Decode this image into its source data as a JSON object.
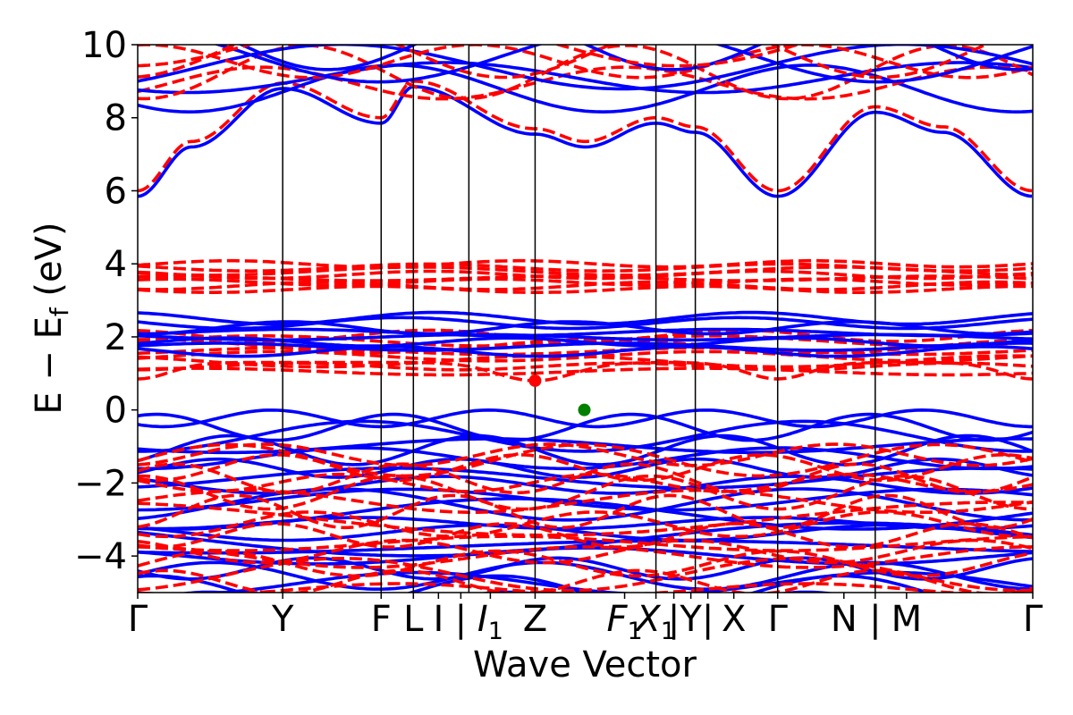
{
  "chart_data": {
    "type": "line",
    "title": "",
    "xlabel": "Wave Vector",
    "ylabel": "E − E",
    "ylabel_sub": "f",
    "ylabel_unit": " (eV)",
    "ylim": [
      -5,
      10
    ],
    "yticks": [
      -4,
      -2,
      0,
      2,
      4,
      6,
      8,
      10
    ],
    "ytick_labels": [
      "−4",
      "−2",
      "0",
      "2",
      "4",
      "6",
      "8",
      "10"
    ],
    "xlim": [
      0,
      1000
    ],
    "kpoint_positions": [
      0,
      162,
      272,
      308,
      370,
      444,
      579,
      623,
      715,
      824,
      1000
    ],
    "xtick_labels": [
      {
        "k": 0,
        "label": "Γ"
      },
      {
        "k": 162,
        "label": "Y"
      },
      {
        "k": 272,
        "label": "F"
      },
      {
        "k": 308,
        "label": "L"
      },
      {
        "k": 336,
        "label": "I"
      },
      {
        "k": 361,
        "label": "|"
      },
      {
        "k": 394,
        "label": "I",
        "sub": "1",
        "italic": true
      },
      {
        "k": 444,
        "label": "Z"
      },
      {
        "k": 544,
        "label": "F",
        "sub": "1",
        "italic": true
      },
      {
        "k": 579,
        "label": "X",
        "sub": "1",
        "italic": true
      },
      {
        "k": 599,
        "label": "|"
      },
      {
        "k": 618,
        "label": "Y"
      },
      {
        "k": 637,
        "label": "|"
      },
      {
        "k": 666,
        "label": "X"
      },
      {
        "k": 715,
        "label": "Γ"
      },
      {
        "k": 789,
        "label": "N"
      },
      {
        "k": 824,
        "label": "|"
      },
      {
        "k": 859,
        "label": "M"
      },
      {
        "k": 1000,
        "label": "Γ"
      }
    ],
    "series": [
      {
        "color": "#0000ff",
        "style": "solid"
      },
      {
        "color": "#ff0000",
        "style": "dashed"
      }
    ],
    "conduction_representative": [
      {
        "k": 0,
        "E": 5.85
      },
      {
        "k": 60,
        "E": 7.2
      },
      {
        "k": 162,
        "E": 8.8
      },
      {
        "k": 272,
        "E": 7.85
      },
      {
        "k": 308,
        "E": 8.85
      },
      {
        "k": 444,
        "E": 7.55
      },
      {
        "k": 500,
        "E": 7.2
      },
      {
        "k": 579,
        "E": 7.85
      },
      {
        "k": 623,
        "E": 7.6
      },
      {
        "k": 715,
        "E": 5.85
      },
      {
        "k": 824,
        "E": 8.15
      },
      {
        "k": 900,
        "E": 7.6
      },
      {
        "k": 1000,
        "E": 5.85
      }
    ],
    "markers": [
      {
        "name": "CBM",
        "k": 444,
        "E": 0.8,
        "color": "#ff0000"
      },
      {
        "name": "VBM",
        "k": 499,
        "E": 0.0,
        "color": "#008000"
      }
    ]
  }
}
